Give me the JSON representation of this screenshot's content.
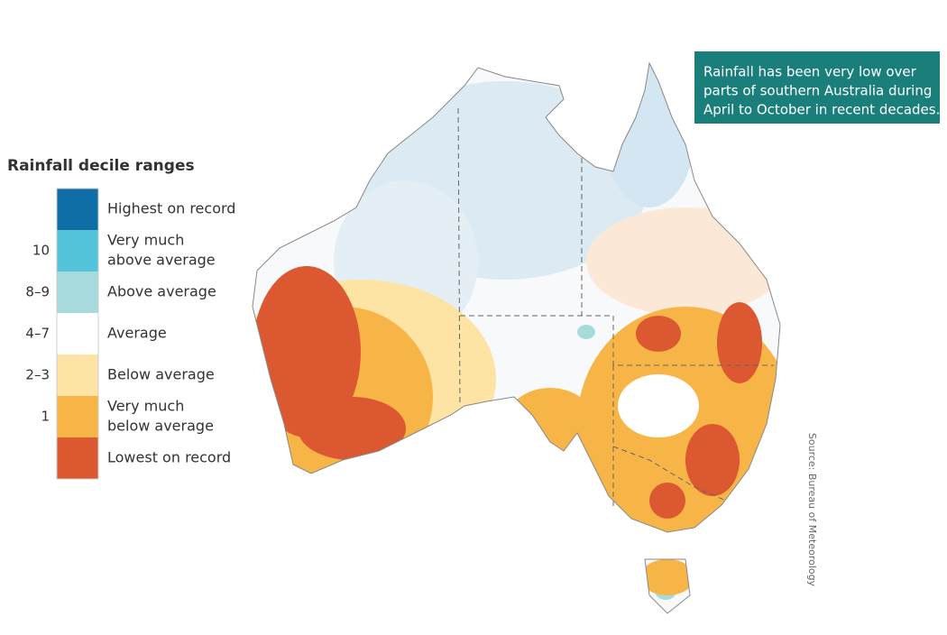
{
  "legend": {
    "title": "Rainfall decile ranges",
    "items": [
      {
        "lines": [
          "Highest on record"
        ],
        "color": "#0f6ea6"
      },
      {
        "lines": [
          "Very much",
          "above average"
        ],
        "decile": "10",
        "color": "#52c3d8"
      },
      {
        "lines": [
          "Above average"
        ],
        "decile": "8–9",
        "color": "#a7dadc"
      },
      {
        "lines": [
          "Average"
        ],
        "decile": "4–7",
        "color": "#ffffff"
      },
      {
        "lines": [
          "Below average"
        ],
        "decile": "2–3",
        "color": "#fde4a4"
      },
      {
        "lines": [
          "Very much",
          "below average"
        ],
        "decile": "1",
        "color": "#f8b547"
      },
      {
        "lines": [
          "Lowest on record"
        ],
        "color": "#dc5830"
      }
    ]
  },
  "callout": {
    "lines": [
      "Rainfall has been very low over",
      "parts of southern Australia during",
      "April to October in recent decades."
    ]
  },
  "source": "Source: Bureau of Meteorology"
}
